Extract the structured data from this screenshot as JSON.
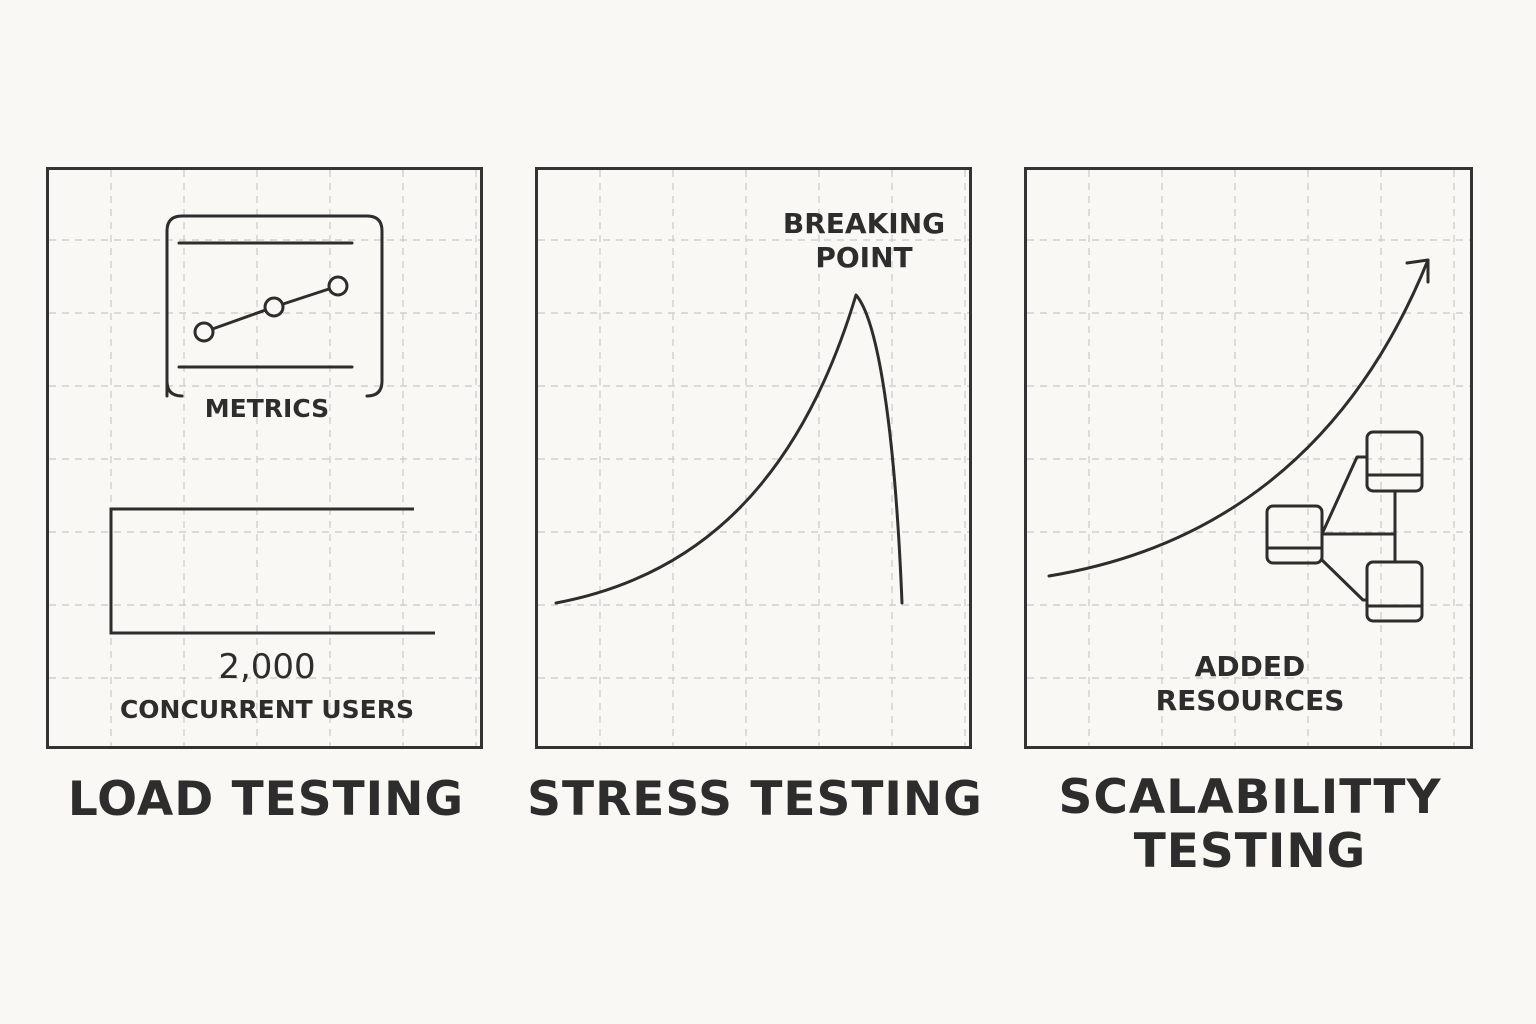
{
  "colors": {
    "background": "#f9f8f4",
    "ink": "#2d2d2d",
    "grid": "#cfcfcf"
  },
  "panels": [
    {
      "id": "load",
      "caption": "LOAD TESTING",
      "icons": [
        "metrics-monitor-icon",
        "user-load-bar-icon"
      ],
      "metrics_label": "METRICS",
      "users_count": "2,000",
      "users_label": "CONCURRENT USERS"
    },
    {
      "id": "stress",
      "caption": "STRESS TESTING",
      "icons": [
        "breaking-point-curve-icon"
      ],
      "peak_label_line1": "BREAKING",
      "peak_label_line2": "POINT"
    },
    {
      "id": "scale",
      "caption_line1": "SCALABILITTY",
      "caption_line2": "TESTING",
      "icons": [
        "growth-arrow-icon",
        "server-cluster-icon"
      ],
      "resources_line1": "ADDED",
      "resources_line2": "RESOURCES"
    }
  ]
}
